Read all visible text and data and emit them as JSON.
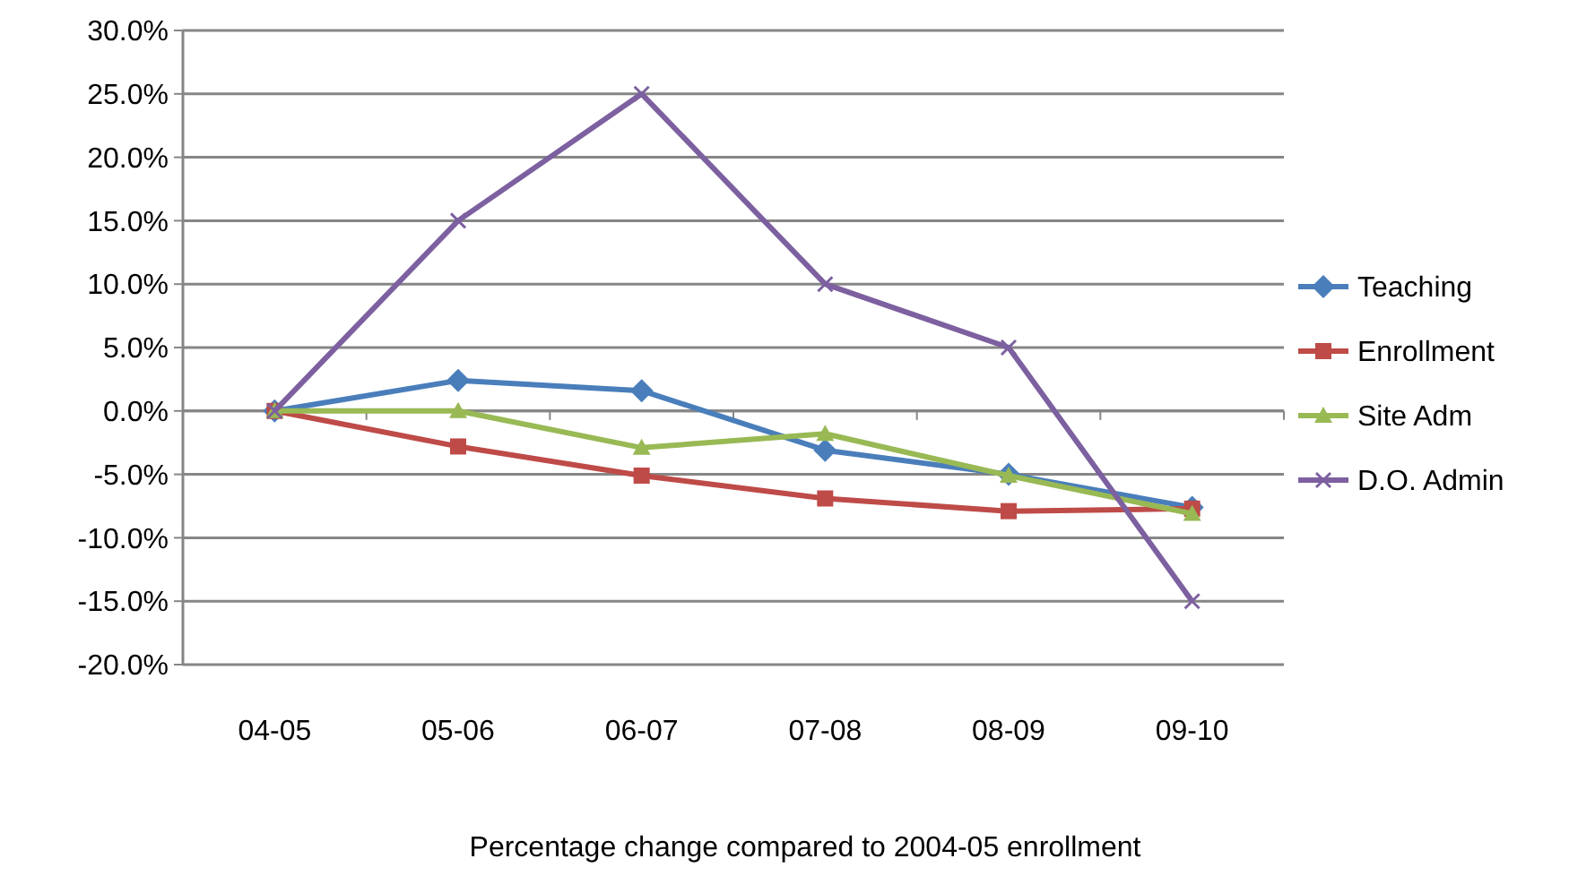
{
  "chart_data": {
    "type": "line",
    "xlabel": "Percentage change compared to 2004-05 enrollment",
    "categories": [
      "04-05",
      "05-06",
      "06-07",
      "07-08",
      "08-09",
      "09-10"
    ],
    "series": [
      {
        "name": "Teaching",
        "color": "#4a7ebb",
        "marker": "diamond",
        "values": [
          0,
          2.4,
          1.6,
          -3.1,
          -5.0,
          -7.6
        ]
      },
      {
        "name": "Enrollment",
        "color": "#be4b48",
        "marker": "square",
        "values": [
          0,
          -2.8,
          -5.1,
          -6.9,
          -7.9,
          -7.7
        ]
      },
      {
        "name": "Site Adm",
        "color": "#98b954",
        "marker": "triangle",
        "values": [
          0,
          0,
          -2.9,
          -1.8,
          -5.1,
          -8.1
        ]
      },
      {
        "name": "D.O. Admin",
        "color": "#7d60a0",
        "marker": "cross",
        "values": [
          0,
          15,
          25,
          10,
          5,
          -15
        ]
      }
    ],
    "ylim": [
      -20,
      30
    ],
    "yticks": [
      {
        "value": -20,
        "label": "-20.0%"
      },
      {
        "value": -15,
        "label": "-15.0%"
      },
      {
        "value": -10,
        "label": "-10.0%"
      },
      {
        "value": -5,
        "label": "-5.0%"
      },
      {
        "value": 0,
        "label": "0.0%"
      },
      {
        "value": 5,
        "label": "5.0%"
      },
      {
        "value": 10,
        "label": "10.0%"
      },
      {
        "value": 15,
        "label": "15.0%"
      },
      {
        "value": 20,
        "label": "20.0%"
      },
      {
        "value": 25,
        "label": "25.0%"
      },
      {
        "value": 30,
        "label": "30.0%"
      }
    ],
    "grid": "y",
    "legend": "right"
  }
}
